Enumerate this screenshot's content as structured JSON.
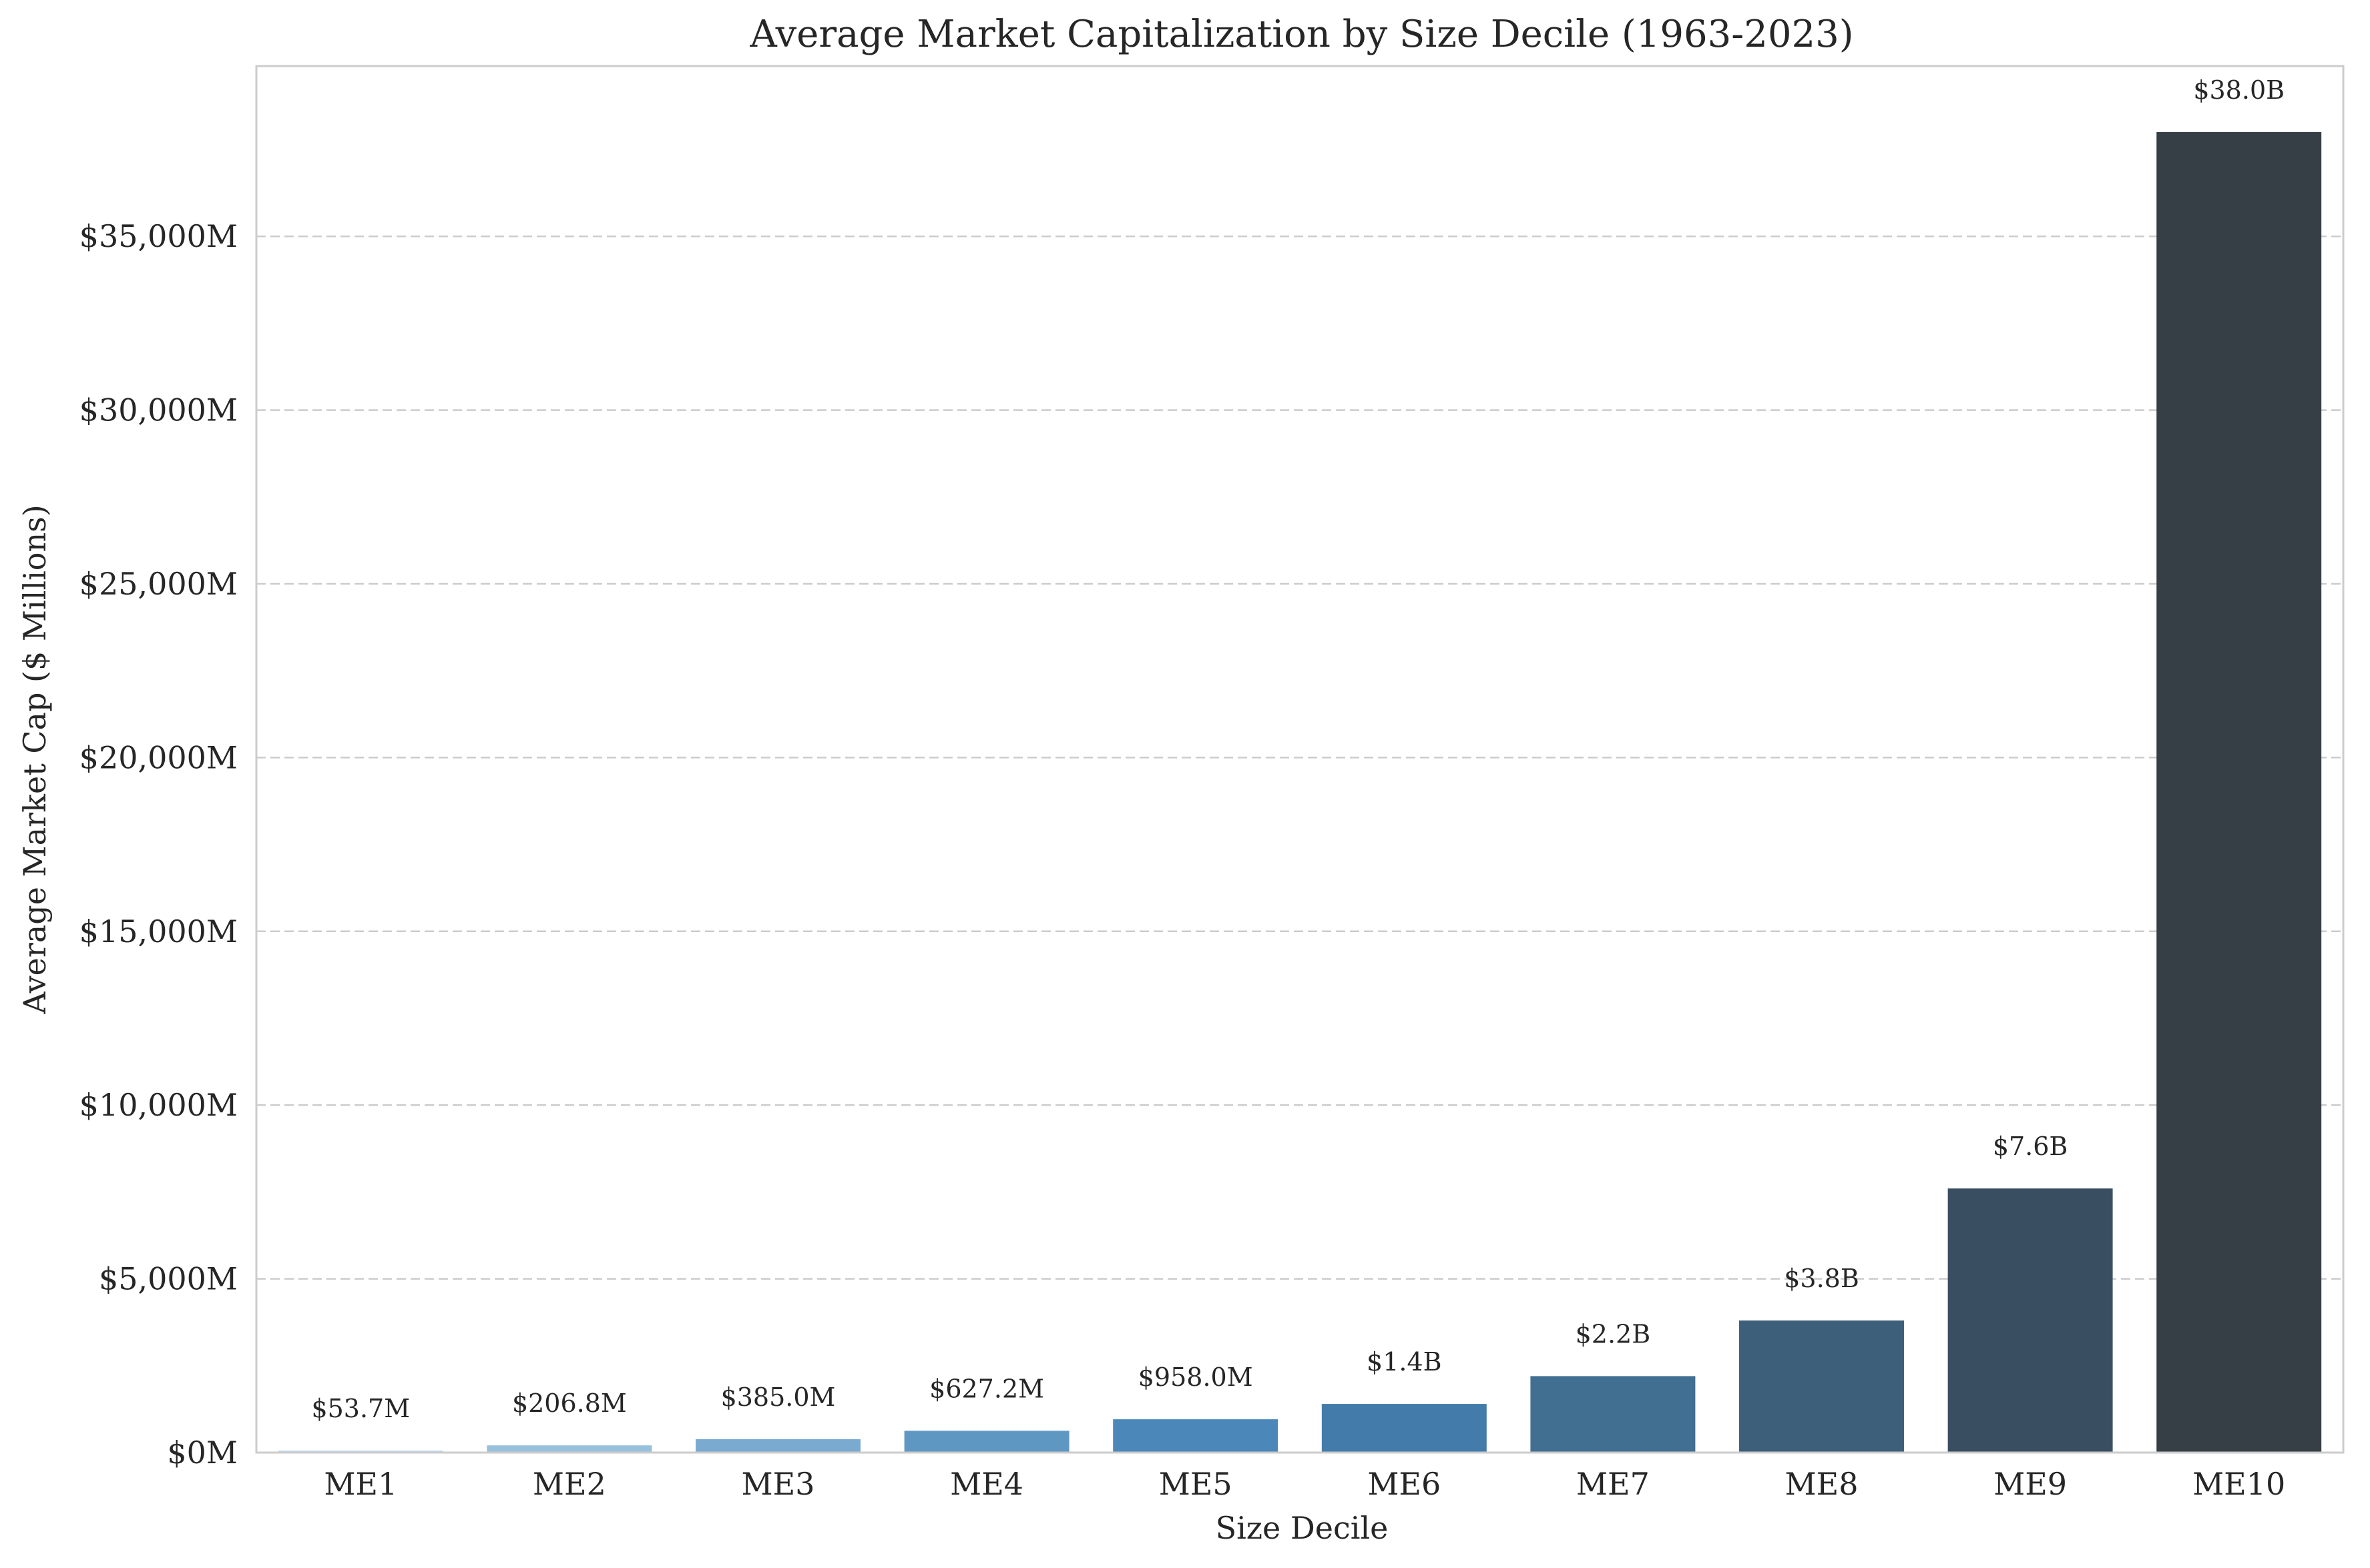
{
  "chart_data": {
    "type": "bar",
    "title": "Average Market Capitalization by Size Decile (1963-2023)",
    "xlabel": "Size Decile",
    "ylabel": "Average Market Cap ($ Millions)",
    "categories": [
      "ME1",
      "ME2",
      "ME3",
      "ME4",
      "ME5",
      "ME6",
      "ME7",
      "ME8",
      "ME9",
      "ME10"
    ],
    "values": [
      53.7,
      206.8,
      385.0,
      627.2,
      958.0,
      1400,
      2200,
      3800,
      7600,
      38000
    ],
    "data_labels": [
      "$53.7M",
      "$206.8M",
      "$385.0M",
      "$627.2M",
      "$958.0M",
      "$1.4B",
      "$2.2B",
      "$3.8B",
      "$7.6B",
      "$38.0B"
    ],
    "ylim": [
      0,
      39900
    ],
    "yticks": [
      0,
      5000,
      10000,
      15000,
      20000,
      25000,
      30000,
      35000
    ],
    "ytick_labels": [
      "$0M",
      "$5,000M",
      "$10,000M",
      "$15,000M",
      "$20,000M",
      "$25,000M",
      "$30,000M",
      "$35,000M"
    ],
    "grid": "horizontal dashed",
    "colors": [
      "#b5d4e9",
      "#97c0dc",
      "#7aaad0",
      "#5f97c3",
      "#4b87b8",
      "#437caa",
      "#406f91",
      "#3e5f7a",
      "#3a4e62",
      "#363f45"
    ]
  }
}
